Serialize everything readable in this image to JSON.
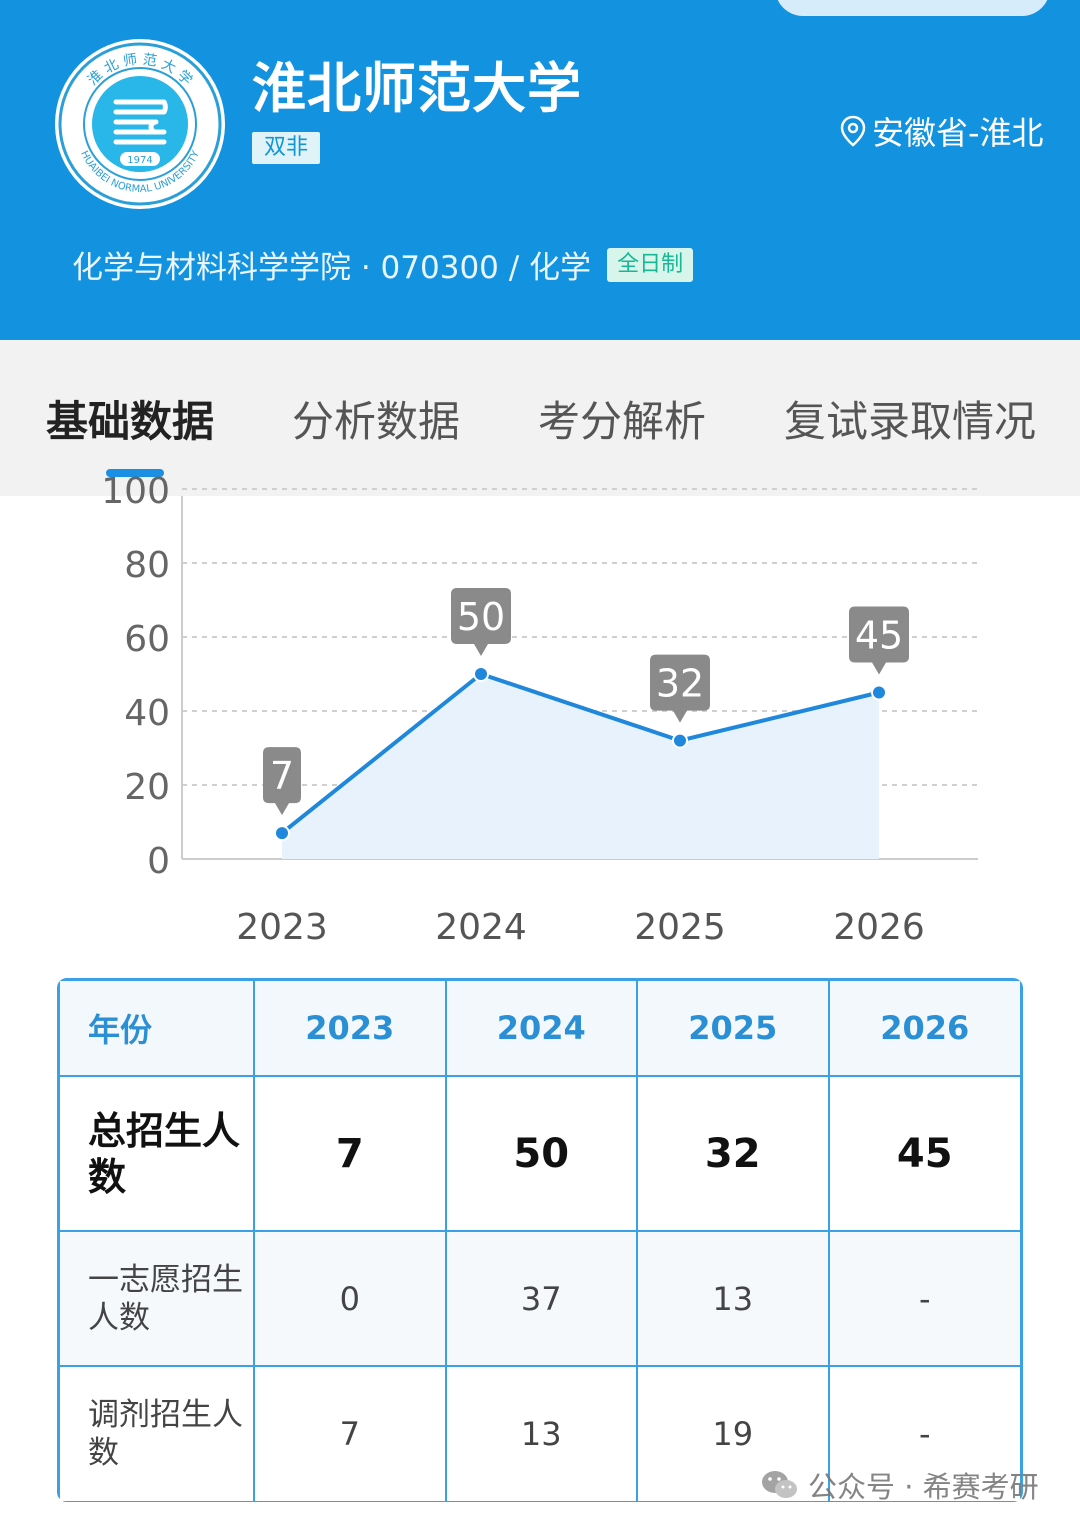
{
  "header": {
    "university": "淮北师范大学",
    "tag": "双非",
    "location": "安徽省-淮北",
    "college_line": "化学与材料科学学院 · 070300 / 化学",
    "mode_tag": "全日制",
    "logo": {
      "year": "1974",
      "text_en": "HUAIBEI NORMAL UNIVERSITY",
      "text_cn": "淮北师范大学"
    }
  },
  "tabs": [
    {
      "label": "基础数据",
      "active": true
    },
    {
      "label": "分析数据",
      "active": false
    },
    {
      "label": "考分解析",
      "active": false
    },
    {
      "label": "复试录取情况",
      "active": false
    }
  ],
  "chart_data": {
    "type": "area",
    "categories": [
      "2023",
      "2024",
      "2025",
      "2026"
    ],
    "values": [
      7,
      50,
      32,
      45
    ],
    "data_labels": [
      "7",
      "50",
      "32",
      "45"
    ],
    "ylim": [
      0,
      100
    ],
    "yticks": [
      "0",
      "20",
      "40",
      "60",
      "80",
      "100"
    ],
    "grid": true,
    "line_color": "#1f87dc",
    "fill_color": "#e7f2fc",
    "label_color": "#8a8a8a"
  },
  "table": {
    "header": [
      "年份",
      "2023",
      "2024",
      "2025",
      "2026"
    ],
    "rows": [
      {
        "label": "总招生人数",
        "values": [
          "7",
          "50",
          "32",
          "45"
        ]
      },
      {
        "label": "一志愿招生人数",
        "values": [
          "0",
          "37",
          "13",
          "-"
        ]
      },
      {
        "label": "调剂招生人数",
        "values": [
          "7",
          "13",
          "19",
          "-"
        ]
      }
    ]
  },
  "watermark": "公众号 · 希赛考研"
}
